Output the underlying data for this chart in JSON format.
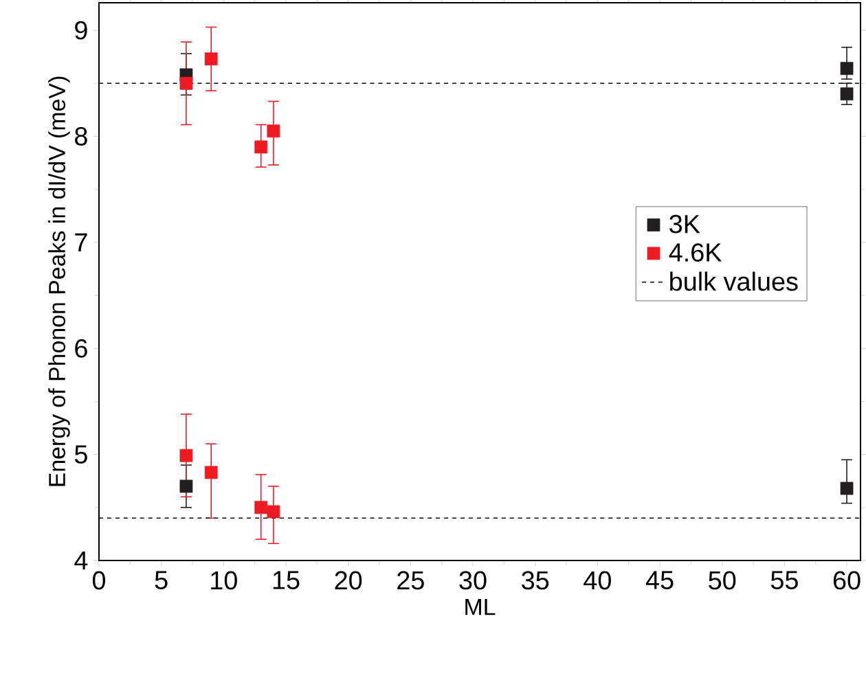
{
  "chart_data": {
    "type": "scatter",
    "xlabel": "ML",
    "ylabel": "Energy of Phonon Peaks in dI/dV (meV)",
    "xlim": [
      0,
      61.1
    ],
    "ylim": [
      4,
      9.26
    ],
    "xticks": [
      0,
      5,
      10,
      15,
      20,
      25,
      30,
      35,
      40,
      45,
      50,
      55,
      60
    ],
    "yticks": [
      4,
      5,
      6,
      7,
      8,
      9
    ],
    "marker": "square",
    "legend": "right",
    "grid": false,
    "series": [
      {
        "name": "3K",
        "color": "#231f20",
        "x": [
          7,
          7,
          60,
          60,
          60
        ],
        "values": [
          8.58,
          4.7,
          8.64,
          8.4,
          4.68
        ],
        "errors": [
          [
            8.39,
            8.78
          ],
          [
            4.5,
            4.9
          ],
          [
            8.54,
            8.84
          ],
          [
            8.3,
            8.5
          ],
          [
            4.54,
            4.95
          ]
        ]
      },
      {
        "name": "4.6K",
        "color": "#ed1c24",
        "x": [
          7,
          7,
          9,
          9,
          13,
          13,
          14,
          14
        ],
        "values": [
          8.5,
          4.99,
          8.73,
          4.83,
          7.9,
          4.5,
          8.05,
          4.46
        ],
        "errors": [
          [
            8.11,
            8.89
          ],
          [
            4.6,
            5.38
          ],
          [
            8.43,
            9.03
          ],
          [
            4.4,
            5.1
          ],
          [
            7.71,
            8.11
          ],
          [
            4.2,
            4.81
          ],
          [
            7.73,
            8.33
          ],
          [
            4.16,
            4.7
          ]
        ]
      }
    ],
    "ref_lines": [
      {
        "axis": "y",
        "value": 8.5,
        "label": "bulk values",
        "color": "#000000",
        "line_style": "dashed"
      },
      {
        "axis": "y",
        "value": 4.4,
        "color": "#000000",
        "line_style": "dashed"
      }
    ]
  }
}
